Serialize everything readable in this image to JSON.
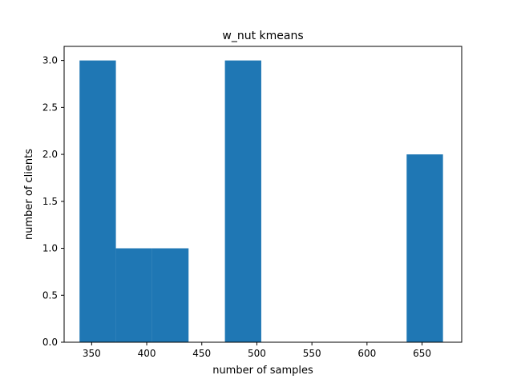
{
  "chart_data": {
    "type": "bar",
    "title": "w_nut kmeans",
    "xlabel": "number of samples",
    "ylabel": "number of clients",
    "xlim": [
      325,
      686
    ],
    "ylim": [
      0,
      3.15
    ],
    "xticks": [
      350,
      400,
      450,
      500,
      550,
      600,
      650
    ],
    "yticks": [
      0.0,
      0.5,
      1.0,
      1.5,
      2.0,
      2.5,
      3.0
    ],
    "xtick_labels": [
      "350",
      "400",
      "450",
      "500",
      "550",
      "600",
      "650"
    ],
    "ytick_labels": [
      "0.0",
      "0.5",
      "1.0",
      "1.5",
      "2.0",
      "2.5",
      "3.0"
    ],
    "bins": [
      {
        "x0": 339,
        "x1": 372,
        "count": 3
      },
      {
        "x0": 372,
        "x1": 405,
        "count": 1
      },
      {
        "x0": 405,
        "x1": 438,
        "count": 1
      },
      {
        "x0": 438,
        "x1": 471,
        "count": 0
      },
      {
        "x0": 471,
        "x1": 504,
        "count": 3
      },
      {
        "x0": 504,
        "x1": 537,
        "count": 0
      },
      {
        "x0": 537,
        "x1": 570,
        "count": 0
      },
      {
        "x0": 570,
        "x1": 603,
        "count": 0
      },
      {
        "x0": 603,
        "x1": 636,
        "count": 0
      },
      {
        "x0": 636,
        "x1": 669,
        "count": 2
      }
    ],
    "bar_color": "#1f77b4",
    "grid": false
  }
}
